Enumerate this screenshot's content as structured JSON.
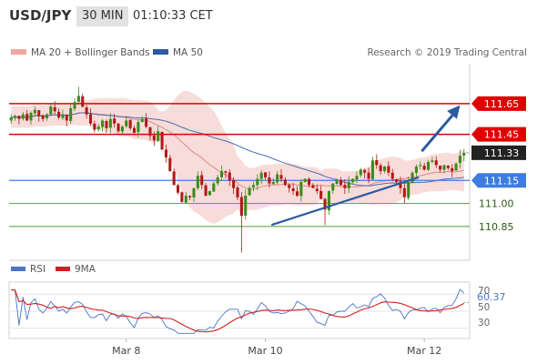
{
  "header": {
    "symbol": "USD/JPY",
    "timeframe": "30 MIN",
    "time": "01:10:33 CET"
  },
  "legend": {
    "ma20": "MA 20 + Bollinger Bands",
    "ma50": "MA 50",
    "credit": "Research © 2019 Trading Central"
  },
  "colors": {
    "resistance": "#e00000",
    "support_blue": "#3d7de0",
    "support_green": "#4aa32a",
    "current": "#222222",
    "trend_arrow": "#2d5aa0",
    "candle_up": "#3a8a1c",
    "candle_down": "#b01818",
    "bollinger_fill": "#f7d6d2",
    "ma20": "#e08888",
    "ma50": "#4a6cb0",
    "rsi": "#4a74c4",
    "rsi_ma": "#d02020"
  },
  "chart_data": {
    "type": "candlestick",
    "instrument": "USD/JPY",
    "interval": "30 MIN",
    "ylim": [
      110.63,
      111.91
    ],
    "x_ticks": [
      "Mar 8",
      "Mar 10",
      "Mar 12"
    ],
    "x_tick_bar_index": [
      29,
      64,
      104
    ],
    "bar_count": 115,
    "levels": {
      "resistance": [
        111.65,
        111.45
      ],
      "current": 111.33,
      "pivot": 111.15,
      "support": [
        111.0,
        110.85
      ]
    },
    "seed_closes": [
      111.56,
      111.57,
      111.55,
      111.58,
      111.54,
      111.59,
      111.61,
      111.57,
      111.55,
      111.58,
      111.63,
      111.6,
      111.56,
      111.58,
      111.54,
      111.62,
      111.66,
      111.7,
      111.63,
      111.58,
      111.52,
      111.48,
      111.5,
      111.54,
      111.49,
      111.55,
      111.52,
      111.47,
      111.5,
      111.54,
      111.49,
      111.46,
      111.53,
      111.55,
      111.5,
      111.44,
      111.41,
      111.47,
      111.35,
      111.3,
      111.21,
      111.12,
      111.07,
      111.01,
      111.05,
      111.04,
      111.1,
      111.18,
      111.12,
      111.05,
      111.08,
      111.13,
      111.17,
      111.21,
      111.2,
      111.15,
      111.1,
      111.04,
      110.92,
      111.05,
      111.1,
      111.12,
      111.16,
      111.2,
      111.17,
      111.13,
      111.14,
      111.19,
      111.16,
      111.12,
      111.1,
      111.08,
      111.05,
      111.14,
      111.16,
      111.12,
      111.1,
      111.08,
      111.03,
      110.96,
      111.08,
      111.13,
      111.15,
      111.12,
      111.1,
      111.14,
      111.16,
      111.18,
      111.22,
      111.2,
      111.16,
      111.28,
      111.25,
      111.21,
      111.24,
      111.2,
      111.16,
      111.14,
      111.1,
      111.04,
      111.14,
      111.2,
      111.24,
      111.25,
      111.22,
      111.27,
      111.28,
      111.25,
      111.22,
      111.25,
      111.23,
      111.21,
      111.26,
      111.31,
      111.33
    ],
    "trendline": {
      "from": {
        "bar": 89,
        "price": 110.86
      },
      "to": {
        "bar": 139,
        "price": 111.17
      }
    },
    "projection_arrow": {
      "from": {
        "bar": 140,
        "price": 111.34
      },
      "to": {
        "bar": 153,
        "price": 111.64
      }
    },
    "rsi": {
      "label": "RSI",
      "ma_label": "9MA",
      "value": "60.37",
      "ticks": [
        "70",
        "50",
        "30"
      ],
      "ylim": [
        20,
        80
      ]
    }
  }
}
